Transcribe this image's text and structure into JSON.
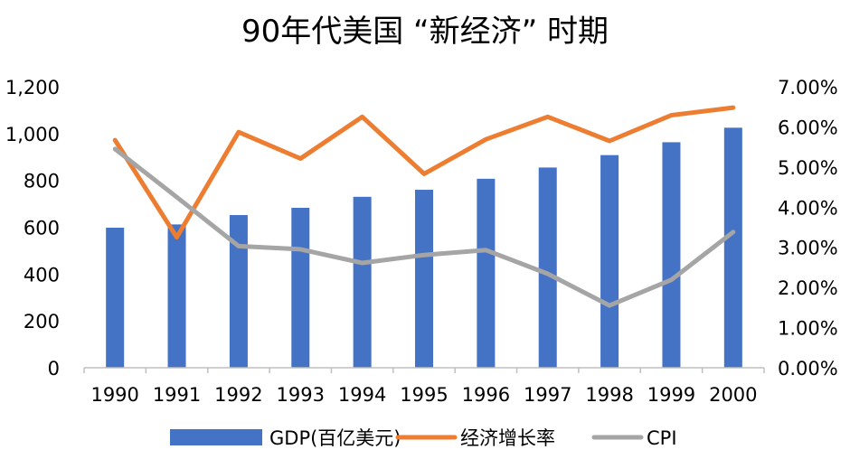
{
  "chart_data": {
    "type": "bar+line",
    "title": "90年代美国 “新经济” 时期",
    "categories": [
      "1990",
      "1991",
      "1992",
      "1993",
      "1994",
      "1995",
      "1996",
      "1997",
      "1998",
      "1999",
      "2000"
    ],
    "y_left": {
      "min": 0,
      "max": 1200,
      "step": 200,
      "tick_labels": [
        "0",
        "200",
        "400",
        "600",
        "800",
        "1,000",
        "1,200"
      ]
    },
    "y_right": {
      "min": 0,
      "max": 7,
      "step": 1,
      "tick_labels": [
        "0.00%",
        "1.00%",
        "2.00%",
        "3.00%",
        "4.00%",
        "5.00%",
        "6.00%",
        "7.00%"
      ]
    },
    "series": [
      {
        "name": "GDP(百亿美元)",
        "type": "bar",
        "axis": "left",
        "color": "#4472C4",
        "values": [
          598,
          612,
          652,
          683,
          730,
          760,
          807,
          855,
          908,
          963,
          1025
        ]
      },
      {
        "name": "经济增长率",
        "type": "line",
        "axis": "right",
        "color": "#ED7D31",
        "values": [
          5.67,
          3.25,
          5.87,
          5.21,
          6.25,
          4.83,
          5.69,
          6.25,
          5.65,
          6.29,
          6.48
        ]
      },
      {
        "name": "CPI",
        "type": "line",
        "axis": "right",
        "color": "#A5A5A5",
        "values": [
          5.45,
          4.25,
          3.03,
          2.95,
          2.61,
          2.81,
          2.93,
          2.34,
          1.55,
          2.19,
          3.38
        ]
      }
    ],
    "legend_position": "bottom",
    "grid": false
  }
}
